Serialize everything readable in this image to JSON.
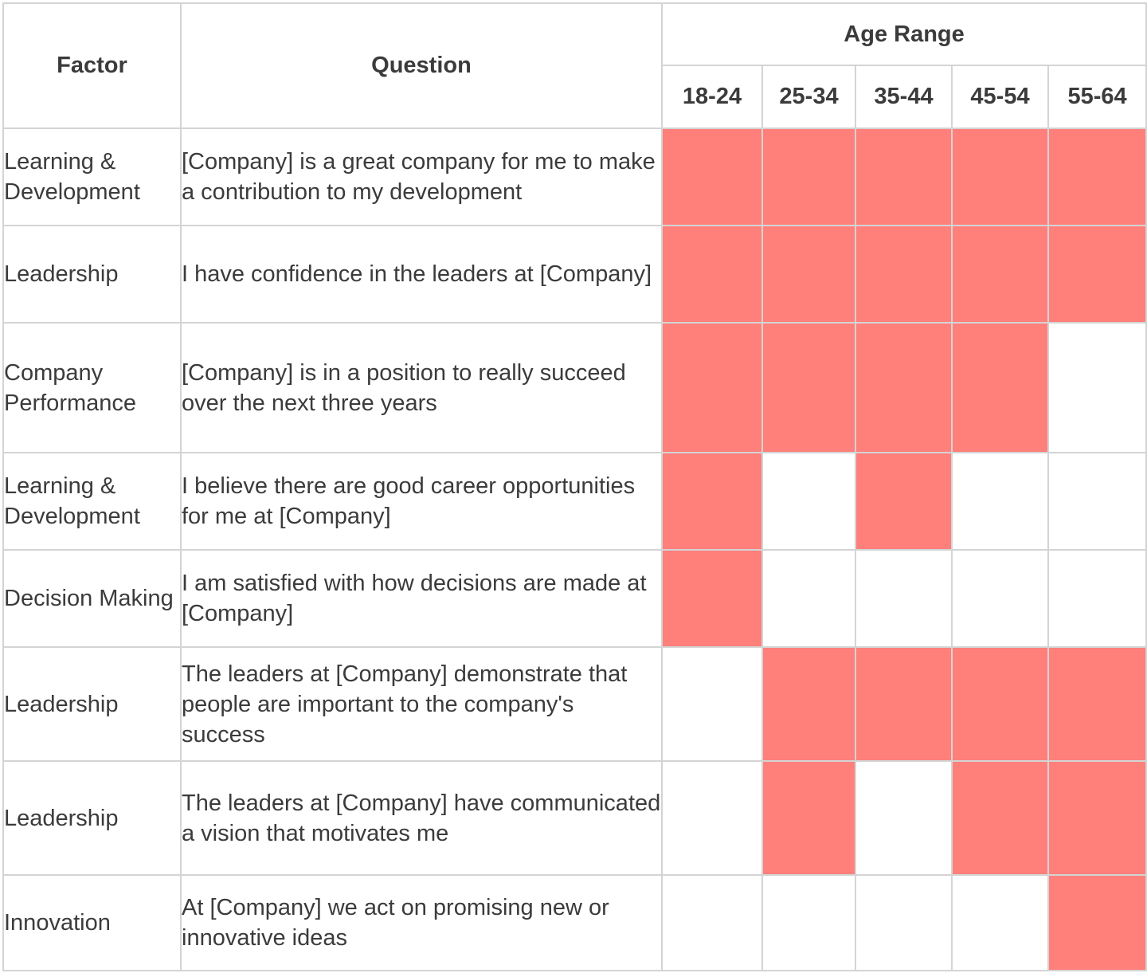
{
  "headers": {
    "factor": "Factor",
    "question": "Question",
    "age_range": "Age Range",
    "ages": [
      "18-24",
      "25-34",
      "35-44",
      "45-54",
      "55-64"
    ]
  },
  "colors": {
    "highlight": "#ff7f7b",
    "empty": "#ffffff",
    "border": "#d4d4d4"
  },
  "rows": [
    {
      "factor": "Learning & Development",
      "question": "[Company] is a great company for me to make a contribution to my development",
      "flags": [
        true,
        true,
        true,
        true,
        true
      ]
    },
    {
      "factor": "Leadership",
      "question": "I have confidence in the leaders at [Company]",
      "flags": [
        true,
        true,
        true,
        true,
        true
      ]
    },
    {
      "factor": "Company Performance",
      "question": "[Company] is in a position to really succeed over the next three years",
      "flags": [
        true,
        true,
        true,
        true,
        false
      ]
    },
    {
      "factor": "Learning & Development",
      "question": "I believe there are good career opportunities for me at [Company]",
      "flags": [
        true,
        false,
        true,
        false,
        false
      ]
    },
    {
      "factor": "Decision Making",
      "question": "I am satisfied with how decisions are made at [Company]",
      "flags": [
        true,
        false,
        false,
        false,
        false
      ]
    },
    {
      "factor": "Leadership",
      "question": "The leaders at [Company] demonstrate that people are important to the company's success",
      "flags": [
        false,
        true,
        true,
        true,
        true
      ]
    },
    {
      "factor": "Leadership",
      "question": "The leaders at [Company] have communicated a vision that motivates me",
      "flags": [
        false,
        true,
        false,
        true,
        true
      ]
    },
    {
      "factor": "Innovation",
      "question": "At [Company] we act on promising new or innovative ideas",
      "flags": [
        false,
        false,
        false,
        false,
        true
      ]
    }
  ]
}
